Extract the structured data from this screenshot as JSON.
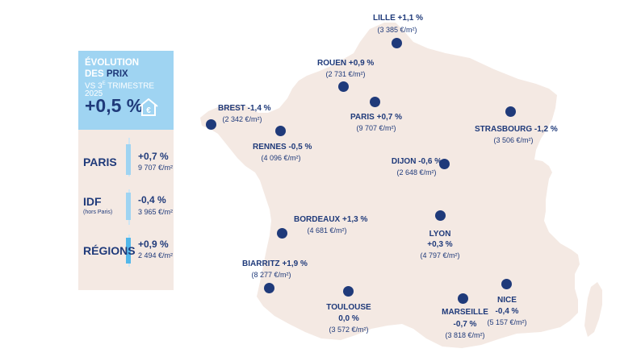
{
  "panel": {
    "title_line1": "ÉVOLUTION",
    "title_line2_a": "DES ",
    "title_line2_b": "PRIX",
    "title_line3_a": "VS 3",
    "title_line3_sup": "E",
    "title_line3_b": " TRIMESTRE 2025",
    "overall_change": "+0,5 %",
    "house_icon": "house-euro-icon",
    "rows": [
      {
        "label": "PARIS",
        "sublabel": "",
        "change": "+0,7 %",
        "price": "9 707 €/m²"
      },
      {
        "label": "IDF",
        "sublabel": "(hors Paris)",
        "change": "-0,4 %",
        "price": "3 965 €/m²"
      },
      {
        "label": "RÉGIONS",
        "sublabel": "",
        "change": "+0,9 %",
        "price": "2 494 €/m²"
      }
    ]
  },
  "colors": {
    "navy": "#1f3a7a",
    "light_blue": "#9fd4f2",
    "bright_blue": "#52b7ea",
    "map_fill": "#f4e9e3"
  },
  "cities": [
    {
      "name": "LILLE +1,1 %",
      "price": "(3 385 €/m²)"
    },
    {
      "name": "ROUEN +0,9 %",
      "price": "(2 731 €/m²)"
    },
    {
      "name": "BREST -1,4 %",
      "price": "(2 342 €/m²)"
    },
    {
      "name": "PARIS +0,7 %",
      "price": "(9 707 €/m²)"
    },
    {
      "name": "STRASBOURG -1,2 %",
      "price": "(3 506 €/m²)"
    },
    {
      "name": "RENNES -0,5 %",
      "price": "(4 096 €/m²)"
    },
    {
      "name": "DIJON -0,6 %",
      "price": "(2 648 €/m²)"
    },
    {
      "name": "BORDEAUX +1,3 %",
      "price": "(4 681 €/m²)"
    },
    {
      "name_line1": "LYON",
      "name_line2": "+0,3 %",
      "price": "(4 797 €/m²)"
    },
    {
      "name": "BIARRITZ +1,9 %",
      "price": "(8 277 €/m²)"
    },
    {
      "name_line1": "TOULOUSE",
      "name_line2": "0,0 %",
      "price": "(3 572 €/m²)"
    },
    {
      "name_line1": "MARSEILLE",
      "name_line2": "-0,7 %",
      "price": "(3 818 €/m²)"
    },
    {
      "name_line1": "NICE",
      "name_line2": "-0,4 %",
      "price": "(5 157 €/m²)"
    }
  ]
}
